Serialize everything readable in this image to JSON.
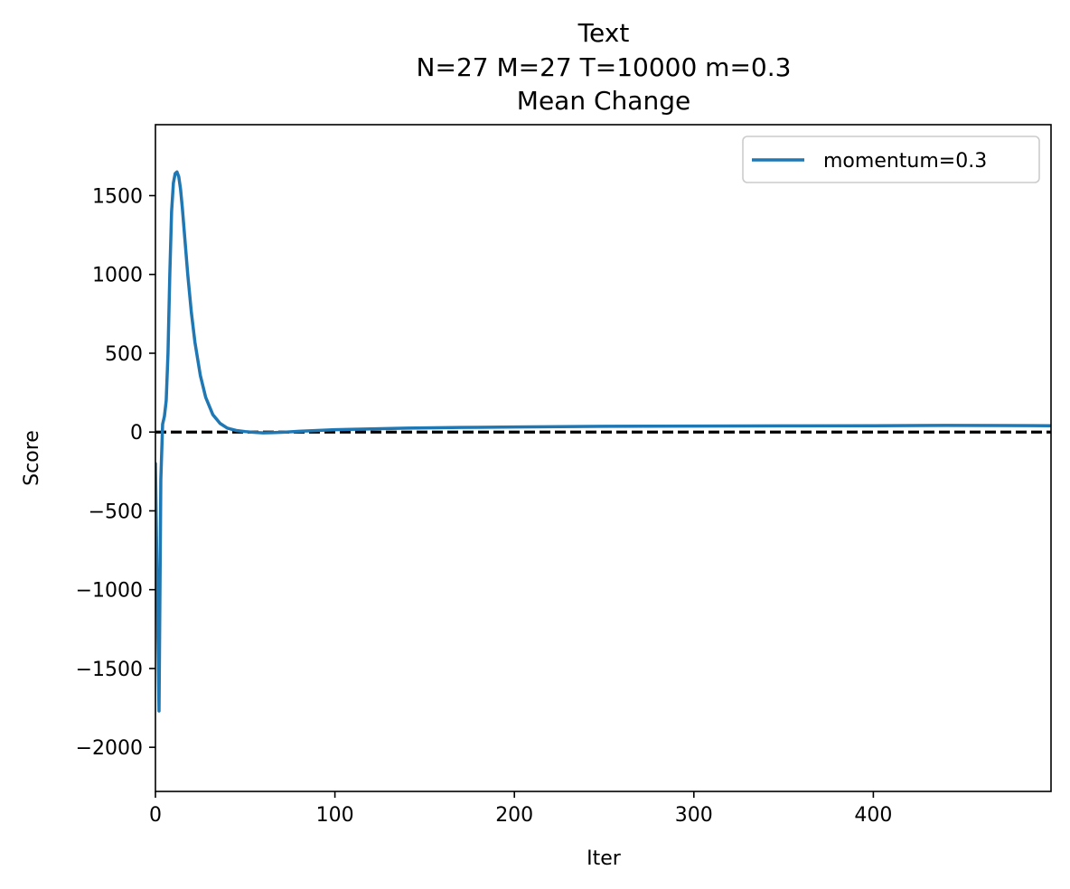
{
  "chart_data": {
    "type": "line",
    "title": [
      "Text",
      "N=27 M=27 T=10000 m=0.3",
      "Mean Change"
    ],
    "xlabel": "Iter",
    "ylabel": "Score",
    "xlim": [
      0,
      499
    ],
    "ylim": [
      -2280,
      1950
    ],
    "x_ticks": [
      0,
      100,
      200,
      300,
      400
    ],
    "y_ticks": [
      -2000,
      -1500,
      -1000,
      -500,
      0,
      500,
      1000,
      1500
    ],
    "x_tick_labels": [
      "0",
      "100",
      "200",
      "300",
      "400"
    ],
    "y_tick_labels": [
      "−2000",
      "−1500",
      "−1000",
      "−500",
      "0",
      "500",
      "1000",
      "1500"
    ],
    "grid": false,
    "legend_position": "top-right",
    "reference_line": {
      "y": 0,
      "style": "dashed",
      "color": "#000000"
    },
    "series": [
      {
        "name": "momentum=0.3",
        "color": "#1f77b4",
        "x": [
          0,
          1,
          2,
          3,
          4,
          5,
          6,
          7,
          8,
          9,
          10,
          11,
          12,
          13,
          14,
          15,
          16,
          18,
          20,
          22,
          25,
          28,
          32,
          36,
          40,
          45,
          50,
          55,
          60,
          65,
          70,
          80,
          90,
          100,
          120,
          140,
          160,
          180,
          200,
          250,
          300,
          350,
          400,
          440,
          470,
          499
        ],
        "y": [
          -200,
          -1000,
          -1770,
          -300,
          50,
          100,
          200,
          500,
          1000,
          1400,
          1580,
          1640,
          1650,
          1620,
          1540,
          1420,
          1280,
          1000,
          760,
          570,
          360,
          220,
          110,
          55,
          25,
          10,
          3,
          -2,
          -5,
          -4,
          -2,
          5,
          10,
          15,
          20,
          25,
          28,
          30,
          32,
          36,
          38,
          39,
          40,
          42,
          41,
          40
        ]
      }
    ]
  }
}
